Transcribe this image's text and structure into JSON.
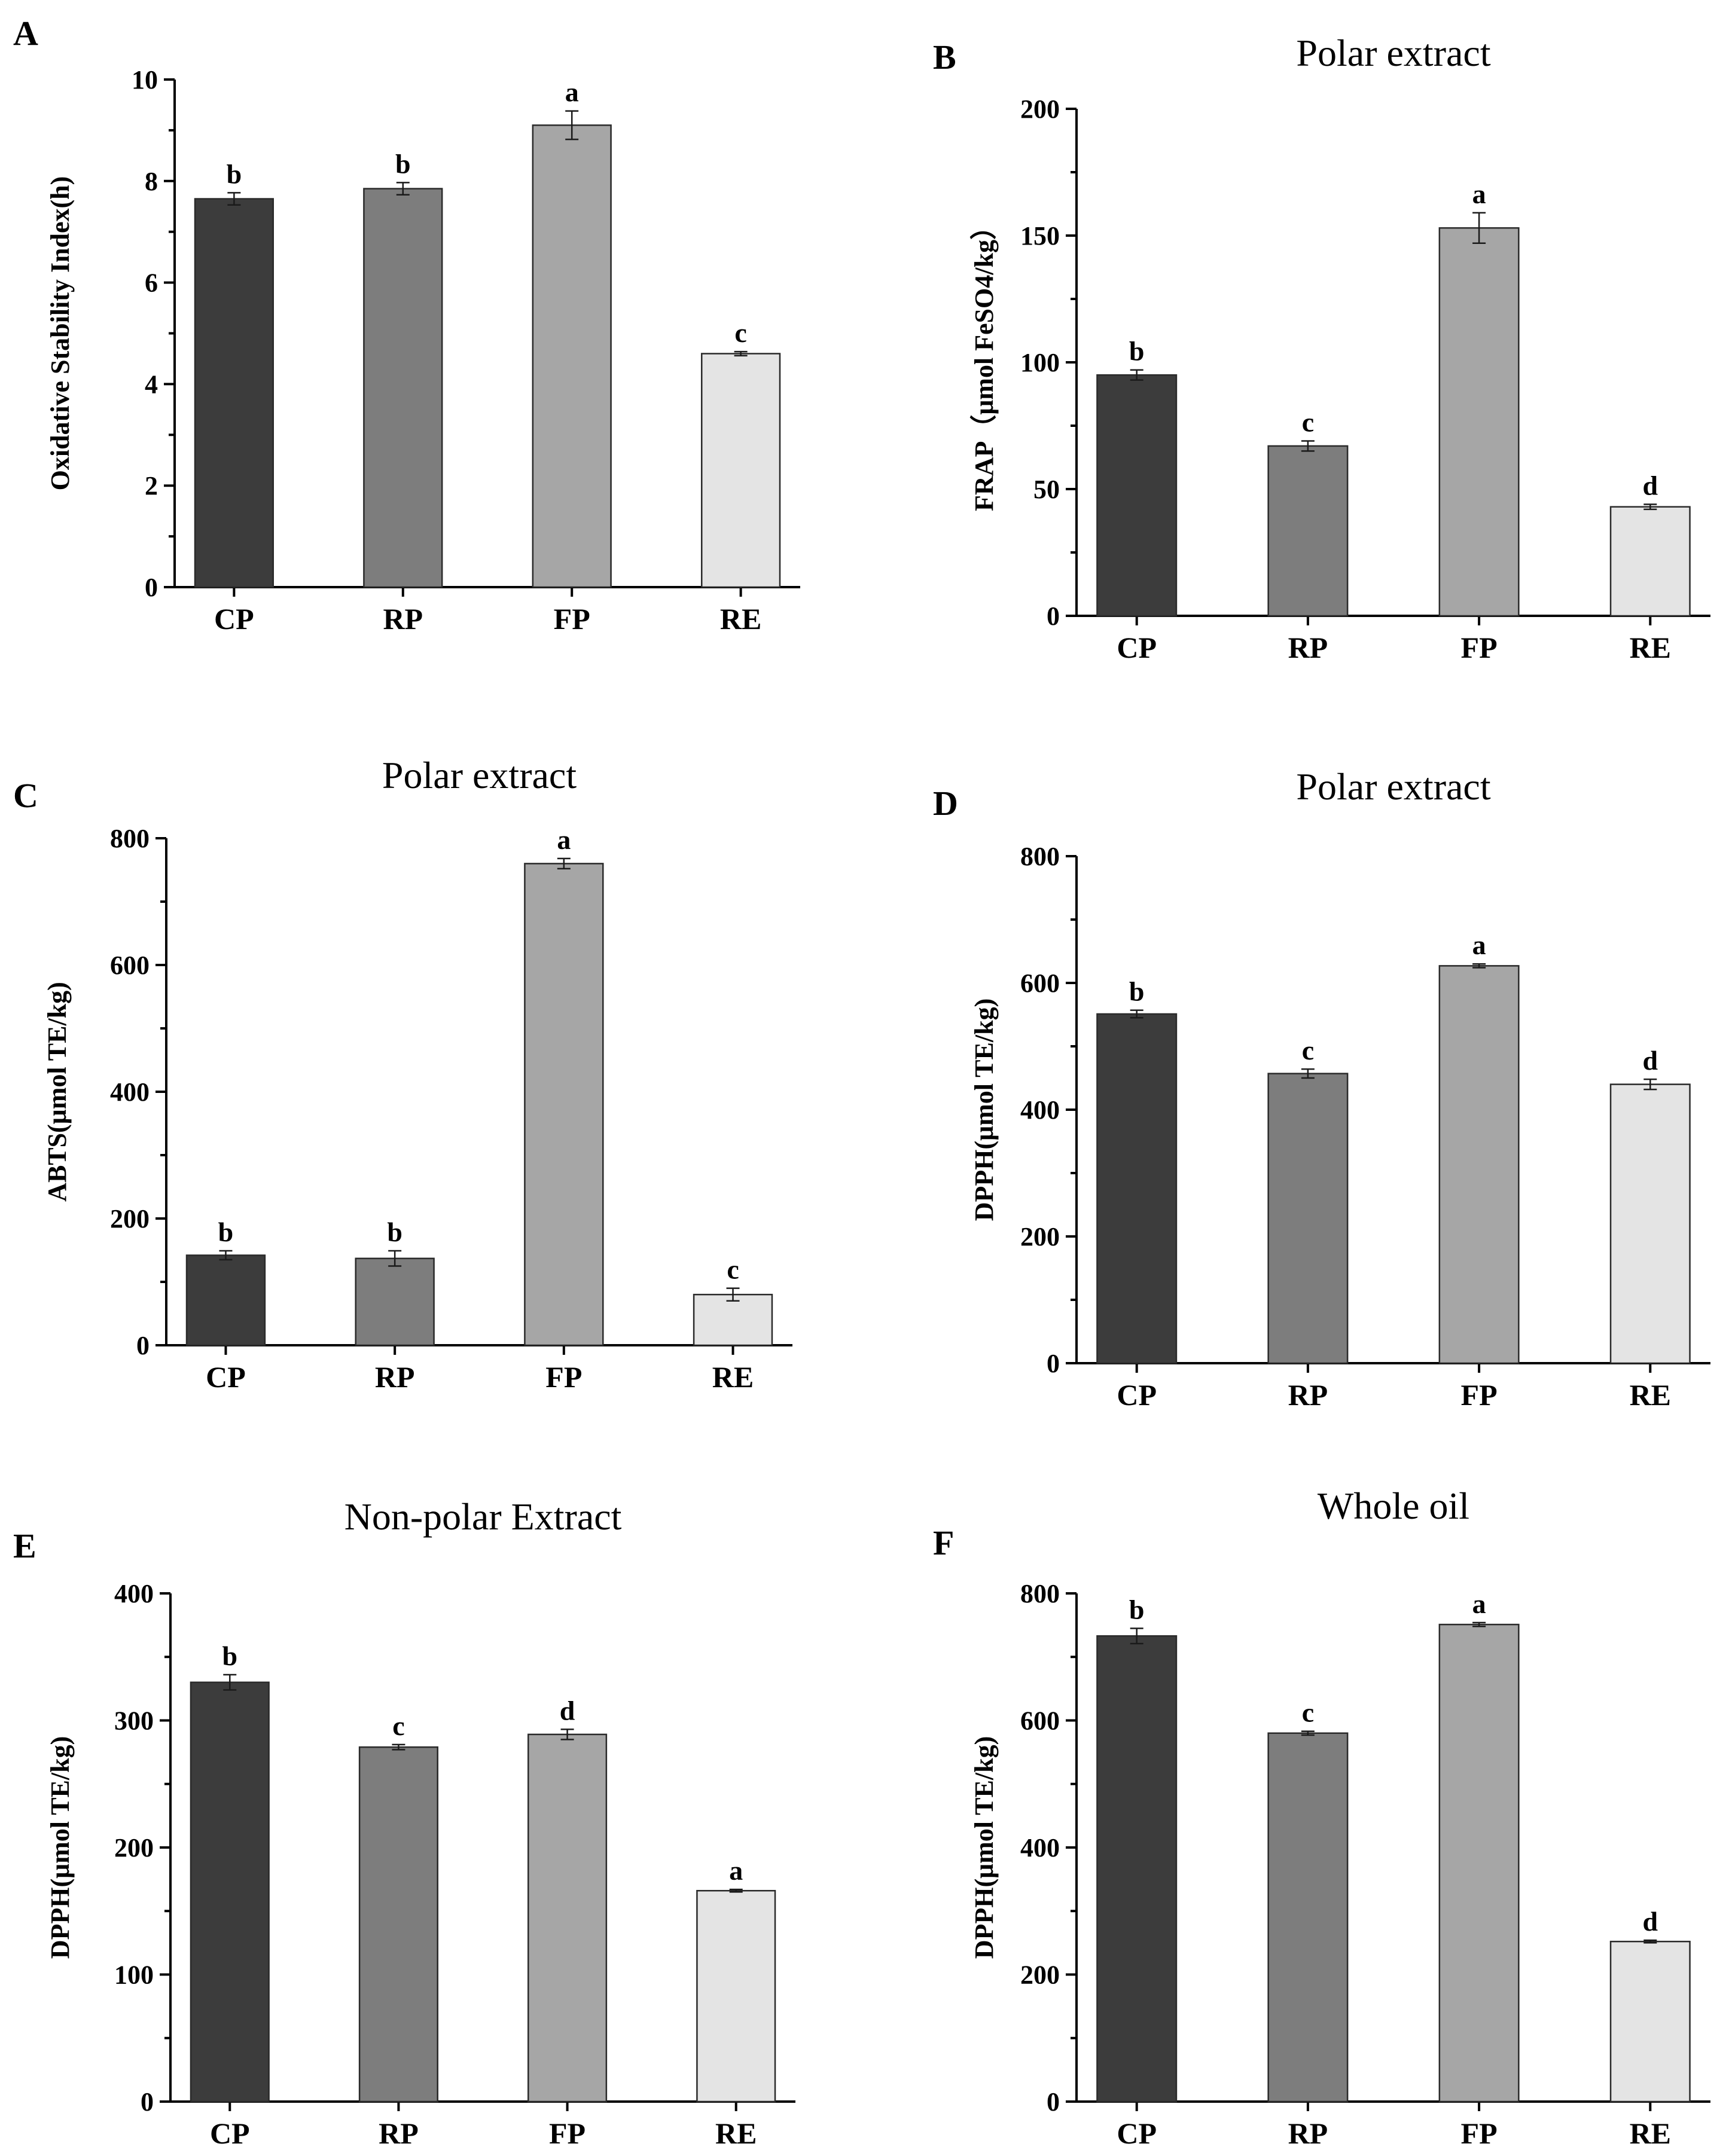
{
  "figure": {
    "bar_colors": [
      "#3c3c3c",
      "#7d7d7d",
      "#a6a6a6",
      "#e4e4e4"
    ]
  },
  "chart_data": [
    {
      "type": "bar",
      "panel_letter": "A",
      "title": "",
      "ylabel": "Oxidative Stability Index(h)",
      "ylim": [
        0,
        10
      ],
      "yticks": [
        0,
        2,
        4,
        6,
        8,
        10
      ],
      "categories": [
        "CP",
        "RP",
        "FP",
        "RE"
      ],
      "values": [
        7.65,
        7.85,
        9.1,
        4.6
      ],
      "errors": [
        0.12,
        0.12,
        0.28,
        0.04
      ],
      "significance": [
        "b",
        "b",
        "a",
        "c"
      ]
    },
    {
      "type": "bar",
      "panel_letter": "B",
      "title": "Polar extract",
      "ylabel": "FRAP（μmol FeSO4/kg）",
      "ylim": [
        0,
        200
      ],
      "yticks": [
        0,
        50,
        100,
        150,
        200
      ],
      "categories": [
        "CP",
        "RP",
        "FP",
        "RE"
      ],
      "values": [
        95,
        67,
        153,
        43
      ],
      "errors": [
        2,
        2,
        6,
        1
      ],
      "significance": [
        "b",
        "c",
        "a",
        "d"
      ]
    },
    {
      "type": "bar",
      "panel_letter": "C",
      "title": "Polar extract",
      "ylabel": "ABTS(μmol TE/kg)",
      "ylim": [
        0,
        800
      ],
      "yticks": [
        0,
        200,
        400,
        600,
        800
      ],
      "categories": [
        "CP",
        "RP",
        "FP",
        "RE"
      ],
      "values": [
        142,
        137,
        760,
        80
      ],
      "errors": [
        7,
        12,
        8,
        10
      ],
      "significance": [
        "b",
        "b",
        "a",
        "c"
      ]
    },
    {
      "type": "bar",
      "panel_letter": "D",
      "title": "Polar extract",
      "ylabel": "DPPH(μmol TE/kg)",
      "ylim": [
        0,
        800
      ],
      "yticks": [
        0,
        200,
        400,
        600,
        800
      ],
      "categories": [
        "CP",
        "RP",
        "FP",
        "RE"
      ],
      "values": [
        551,
        457,
        627,
        440
      ],
      "errors": [
        6,
        7,
        3,
        8
      ],
      "significance": [
        "b",
        "c",
        "a",
        "d"
      ]
    },
    {
      "type": "bar",
      "panel_letter": "E",
      "title": "Non-polar Extract",
      "ylabel": "DPPH(μmol TE/kg)",
      "ylim": [
        0,
        400
      ],
      "yticks": [
        0,
        100,
        200,
        300,
        400
      ],
      "categories": [
        "CP",
        "RP",
        "FP",
        "RE"
      ],
      "values": [
        330,
        279,
        289,
        166
      ],
      "errors": [
        6,
        2,
        4,
        1
      ],
      "significance": [
        "b",
        "c",
        "d",
        "a"
      ]
    },
    {
      "type": "bar",
      "panel_letter": "F",
      "title": "Whole oil",
      "ylabel": "DPPH(μmol TE/kg)",
      "ylim": [
        0,
        800
      ],
      "yticks": [
        0,
        200,
        400,
        600,
        800
      ],
      "categories": [
        "CP",
        "RP",
        "FP",
        "RE"
      ],
      "values": [
        733,
        580,
        751,
        252
      ],
      "errors": [
        12,
        3,
        3,
        2
      ],
      "significance": [
        "b",
        "c",
        "a",
        "d"
      ]
    }
  ]
}
